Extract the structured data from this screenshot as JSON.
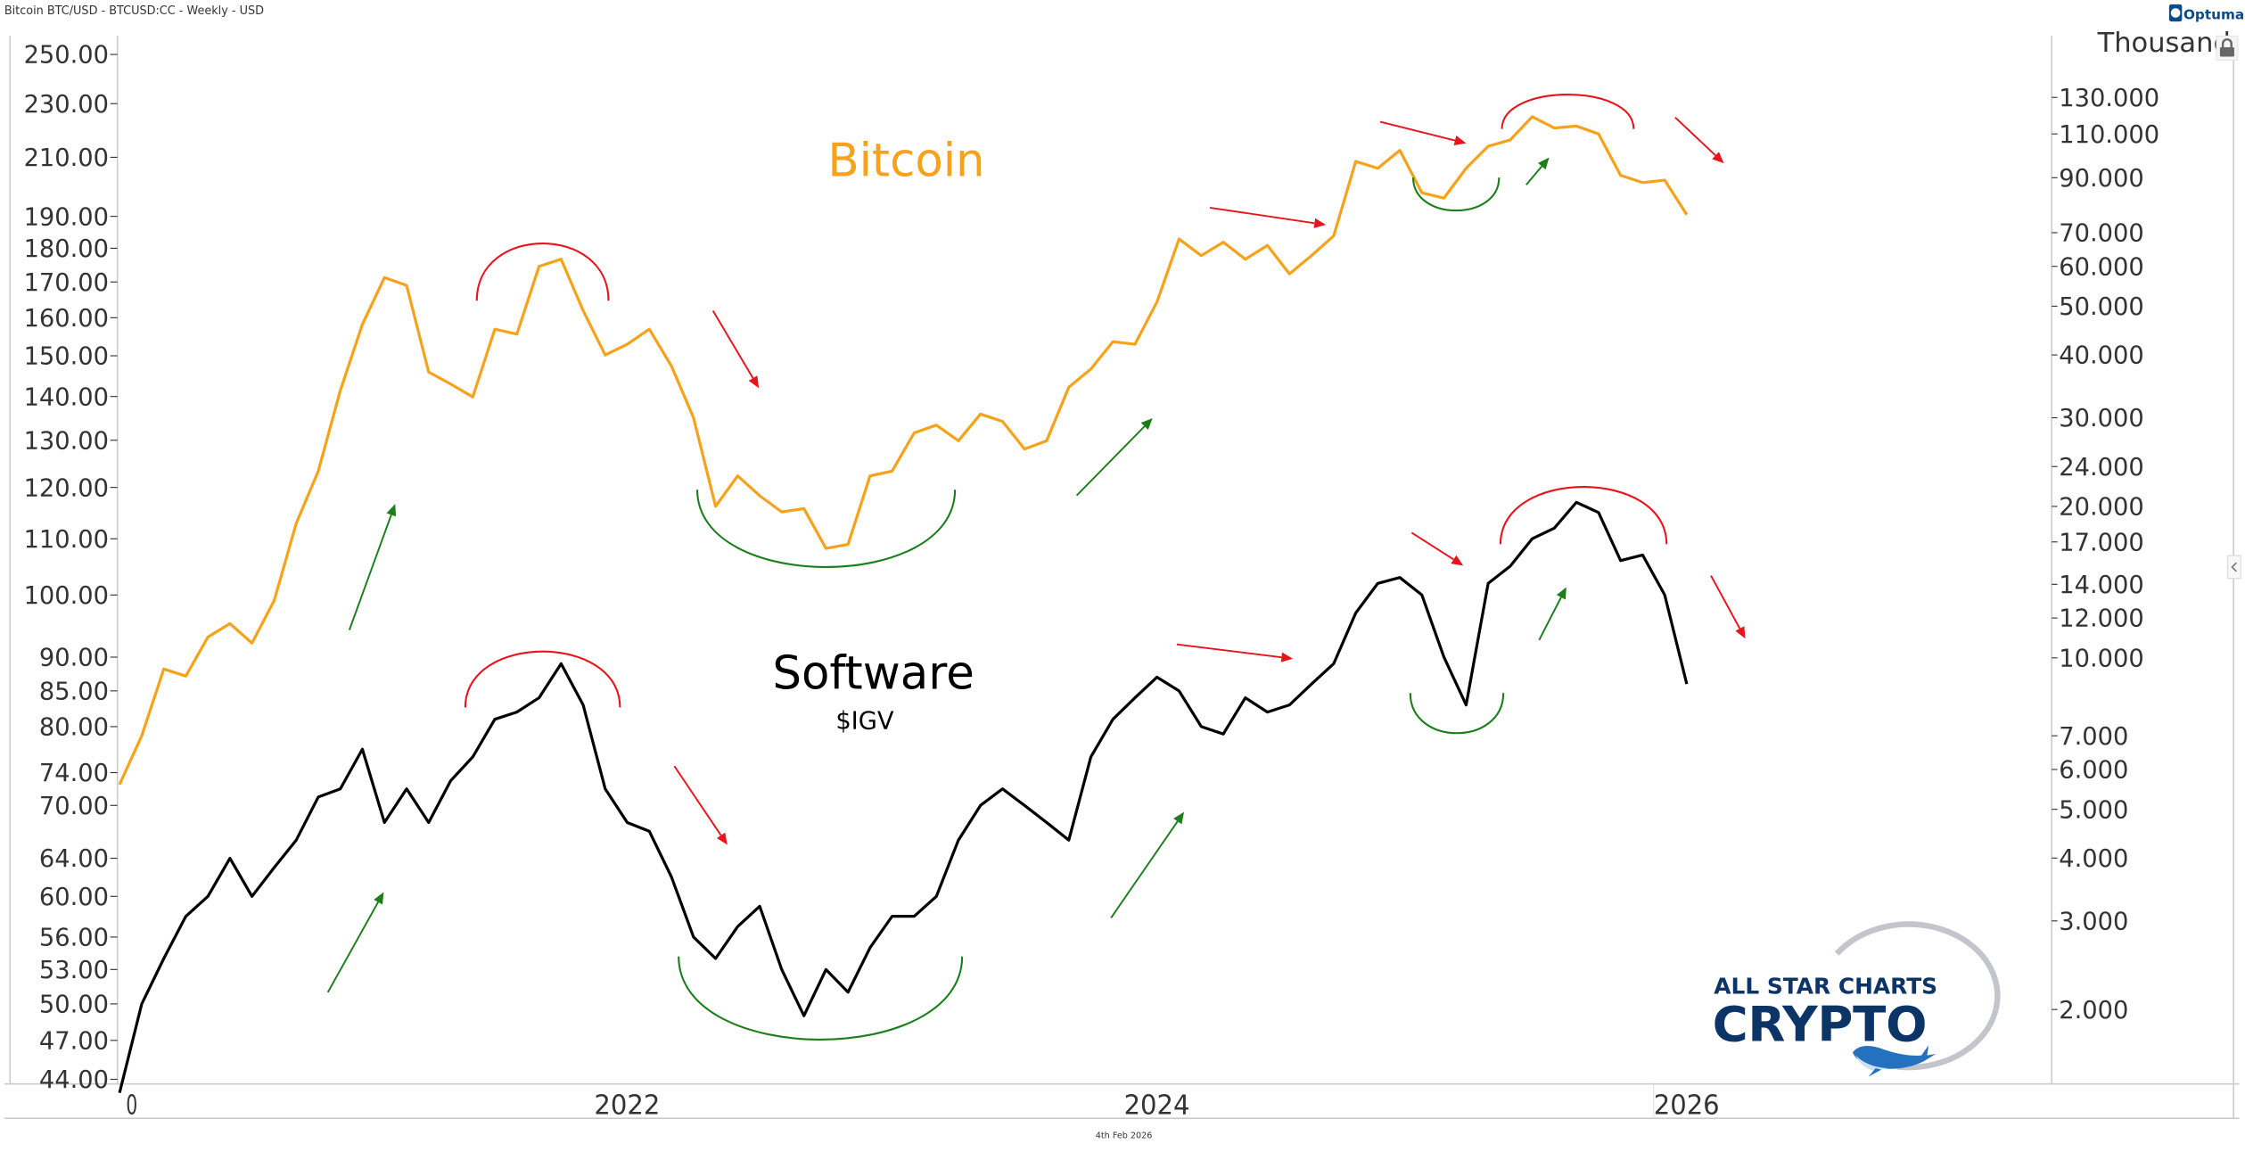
{
  "header": {
    "title": "Bitcoin BTC/USD - BTCUSD:CC - Weekly - USD"
  },
  "branding": {
    "optuma": "Optuma",
    "logo_line1": "ALL STAR CHARTS",
    "logo_line2": "CRYPTO"
  },
  "footer": {
    "date": "4th Feb 2026"
  },
  "colors": {
    "bitcoin": "#f7a21b",
    "software": "#000000",
    "up_arrow": "#1a7f1a",
    "down_arrow": "#e8141c",
    "bowl": "#1a7f1a",
    "dome": "#e8141c",
    "logo": "#0d3466"
  },
  "chart_data": {
    "type": "line",
    "title": "",
    "annotations": {
      "bitcoin_label": "Bitcoin",
      "software_label": "Software",
      "software_ticker": "$IGV"
    },
    "x_axis": {
      "ticks": [
        "0",
        "2022",
        "2024",
        "2026"
      ],
      "range": [
        "2020-03",
        "2026-02"
      ]
    },
    "left_axis": {
      "scale": "log",
      "range": [
        44,
        250
      ],
      "ticks": [
        "250.00",
        "230.00",
        "210.00",
        "190.00",
        "180.00",
        "170.00",
        "160.00",
        "150.00",
        "140.00",
        "130.00",
        "120.00",
        "110.00",
        "100.00",
        "90.00",
        "85.00",
        "80.00",
        "74.00",
        "70.00",
        "64.00",
        "60.00",
        "56.00",
        "53.00",
        "50.00",
        "47.00",
        "44.00"
      ]
    },
    "right_axis": {
      "scale": "log",
      "unit_label": "Thousand",
      "range": [
        2,
        130
      ],
      "ticks": [
        "130.000",
        "110.000",
        "90.000",
        "70.000",
        "60.000",
        "50.000",
        "40.000",
        "30.000",
        "24.000",
        "20.000",
        "17.000",
        "14.000",
        "12.000",
        "10.000",
        "7.000",
        "6.000",
        "5.000",
        "4.000",
        "3.000",
        "2.000"
      ]
    },
    "grid": false,
    "series": [
      {
        "name": "Bitcoin",
        "axis": "right",
        "color": "#f7a21b",
        "x": [
          "2020-03",
          "2020-04",
          "2020-05",
          "2020-06",
          "2020-07",
          "2020-08",
          "2020-09",
          "2020-10",
          "2020-11",
          "2020-12",
          "2021-01",
          "2021-02",
          "2021-03",
          "2021-04",
          "2021-05",
          "2021-06",
          "2021-07",
          "2021-08",
          "2021-09",
          "2021-10",
          "2021-11",
          "2021-12",
          "2022-01",
          "2022-02",
          "2022-03",
          "2022-04",
          "2022-05",
          "2022-06",
          "2022-07",
          "2022-08",
          "2022-09",
          "2022-10",
          "2022-11",
          "2022-12",
          "2023-01",
          "2023-02",
          "2023-03",
          "2023-04",
          "2023-05",
          "2023-06",
          "2023-07",
          "2023-08",
          "2023-09",
          "2023-10",
          "2023-11",
          "2023-12",
          "2024-01",
          "2024-02",
          "2024-03",
          "2024-04",
          "2024-05",
          "2024-06",
          "2024-07",
          "2024-08",
          "2024-09",
          "2024-10",
          "2024-11",
          "2024-12",
          "2025-01",
          "2025-02",
          "2025-03",
          "2025-04",
          "2025-05",
          "2025-06",
          "2025-07",
          "2025-08",
          "2025-09",
          "2025-10",
          "2025-11",
          "2025-12",
          "2026-01",
          "2026-02"
        ],
        "values": [
          5.6,
          7.0,
          9.5,
          9.2,
          11.0,
          11.7,
          10.7,
          13.0,
          18.5,
          23.5,
          34,
          46,
          57,
          55,
          37,
          35,
          33,
          45,
          44,
          60,
          62,
          49,
          40,
          42,
          45,
          38,
          30,
          20,
          23,
          21,
          19.5,
          19.8,
          16.5,
          16.8,
          23,
          23.5,
          28,
          29,
          27,
          30.5,
          29.5,
          26,
          27,
          34.5,
          37.5,
          42.5,
          42,
          51,
          68,
          63,
          67,
          62,
          66,
          58,
          63,
          69,
          97,
          94,
          102,
          84,
          82,
          94,
          104,
          107,
          119,
          113,
          114,
          110,
          91,
          88,
          89,
          76
        ]
      },
      {
        "name": "Software",
        "axis": "left",
        "color": "#000000",
        "x": [
          "2020-03",
          "2020-04",
          "2020-05",
          "2020-06",
          "2020-07",
          "2020-08",
          "2020-09",
          "2020-10",
          "2020-11",
          "2020-12",
          "2021-01",
          "2021-02",
          "2021-03",
          "2021-04",
          "2021-05",
          "2021-06",
          "2021-07",
          "2021-08",
          "2021-09",
          "2021-10",
          "2021-11",
          "2021-12",
          "2022-01",
          "2022-02",
          "2022-03",
          "2022-04",
          "2022-05",
          "2022-06",
          "2022-07",
          "2022-08",
          "2022-09",
          "2022-10",
          "2022-11",
          "2022-12",
          "2023-01",
          "2023-02",
          "2023-03",
          "2023-04",
          "2023-05",
          "2023-06",
          "2023-07",
          "2023-08",
          "2023-09",
          "2023-10",
          "2023-11",
          "2023-12",
          "2024-01",
          "2024-02",
          "2024-03",
          "2024-04",
          "2024-05",
          "2024-06",
          "2024-07",
          "2024-08",
          "2024-09",
          "2024-10",
          "2024-11",
          "2024-12",
          "2025-01",
          "2025-02",
          "2025-03",
          "2025-04",
          "2025-05",
          "2025-06",
          "2025-07",
          "2025-08",
          "2025-09",
          "2025-10",
          "2025-11",
          "2025-12",
          "2026-01",
          "2026-02"
        ],
        "values": [
          43,
          50,
          54,
          58,
          60,
          64,
          60,
          63,
          66,
          71,
          72,
          77,
          68,
          72,
          68,
          73,
          76,
          81,
          82,
          84,
          89,
          83,
          72,
          68,
          67,
          62,
          56,
          54,
          57,
          59,
          53,
          49,
          53,
          51,
          55,
          58,
          58,
          60,
          66,
          70,
          72,
          70,
          68,
          66,
          76,
          81,
          84,
          87,
          85,
          80,
          79,
          84,
          82,
          83,
          86,
          89,
          97,
          102,
          103,
          100,
          90,
          83,
          102,
          105,
          110,
          112,
          117,
          115,
          106,
          107,
          100,
          86
        ]
      }
    ]
  }
}
